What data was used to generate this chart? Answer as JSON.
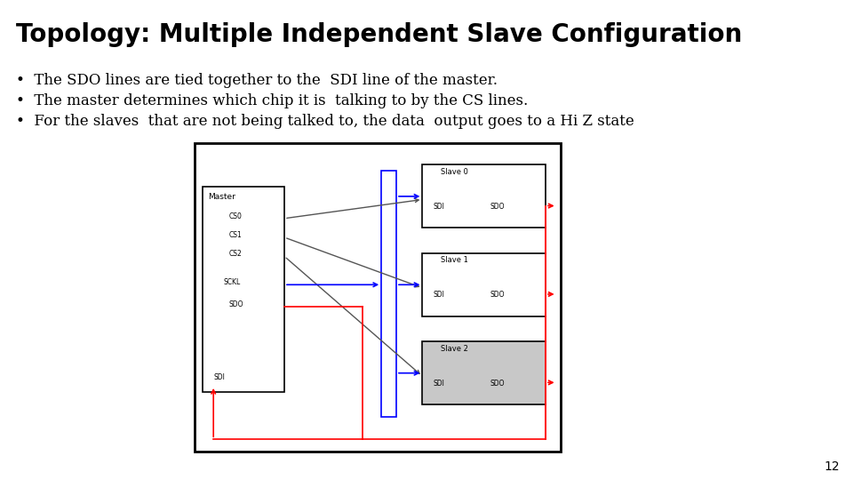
{
  "title": "Topology: Multiple Independent Slave Configuration",
  "bullets": [
    "The SDO lines are tied together to the  SDI line of the master.",
    "The master determines which chip it is  talking to by the CS lines.",
    "For the slaves  that are not being talked to, the data  output goes to a Hi Z state"
  ],
  "page_number": "12",
  "bg": "#ffffff",
  "title_fontsize": 20,
  "bullet_fontsize": 12,
  "title_font": "DejaVu Sans",
  "bullet_font": "DejaVu Serif"
}
